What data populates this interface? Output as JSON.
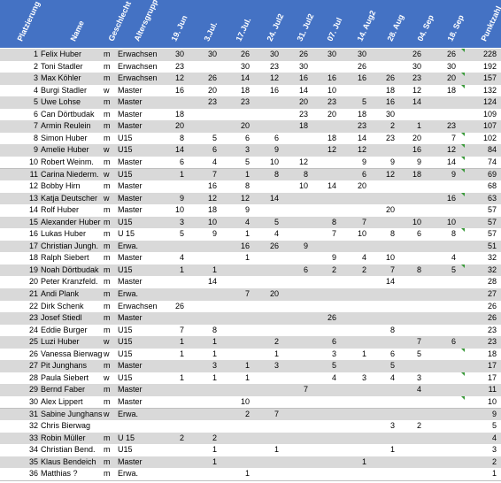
{
  "headers": [
    "Platzierung",
    "Name",
    "Geschlecht",
    "Altersgruppe",
    "19. Jun",
    "3.Jul.",
    "17.Jul.",
    "24. Jul2",
    "31. Jul2",
    "07. Jul",
    "14. Aug2",
    "28. Aug",
    "04. Sep",
    "18. Sep",
    "Punktzahl"
  ],
  "colors": {
    "header": "#4472c4",
    "band": "#d9d9d9",
    "flag": "#3a9a3a"
  },
  "rows": [
    {
      "rank": "1",
      "name": "Felix Huber",
      "sex": "m",
      "group": "Erwachsen",
      "v": [
        "30",
        "30",
        "26",
        "30",
        "26",
        "30",
        "30",
        "",
        "26",
        "26"
      ],
      "total": "228",
      "flag": true
    },
    {
      "rank": "2",
      "name": "Toni Stadler",
      "sex": "m",
      "group": "Erwachsen",
      "v": [
        "23",
        "",
        "30",
        "23",
        "30",
        "",
        "26",
        "",
        "30",
        "30"
      ],
      "total": "192"
    },
    {
      "rank": "3",
      "name": "Max Köhler",
      "sex": "m",
      "group": "Erwachsen",
      "v": [
        "12",
        "26",
        "14",
        "12",
        "16",
        "16",
        "16",
        "26",
        "23",
        "20"
      ],
      "total": "157",
      "flag": true
    },
    {
      "rank": "4",
      "name": "Burgi Stadler",
      "sex": "w",
      "group": "Master",
      "v": [
        "16",
        "20",
        "18",
        "16",
        "14",
        "10",
        "",
        "18",
        "12",
        "18"
      ],
      "total": "132",
      "flag": true
    },
    {
      "rank": "5",
      "name": "Uwe Lohse",
      "sex": "m",
      "group": "Master",
      "v": [
        "",
        "23",
        "23",
        "",
        "20",
        "23",
        "5",
        "16",
        "14",
        ""
      ],
      "total": "124"
    },
    {
      "rank": "6",
      "name": "Can Dörtbudak",
      "sex": "m",
      "group": "Master",
      "v": [
        "18",
        "",
        "",
        "",
        "23",
        "20",
        "18",
        "30",
        "",
        ""
      ],
      "total": "109"
    },
    {
      "rank": "7",
      "name": "Armin Reulein",
      "sex": "m",
      "group": "Master",
      "v": [
        "20",
        "",
        "20",
        "",
        "18",
        "",
        "23",
        "2",
        "1",
        "23"
      ],
      "total": "107"
    },
    {
      "rank": "8",
      "name": "Simon Huber",
      "sex": "m",
      "group": "U15",
      "v": [
        "8",
        "5",
        "6",
        "6",
        "",
        "18",
        "14",
        "23",
        "20",
        "7"
      ],
      "total": "102",
      "flag": true
    },
    {
      "rank": "9",
      "name": "Amelie Huber",
      "sex": "w",
      "group": "U15",
      "v": [
        "14",
        "6",
        "3",
        "9",
        "",
        "12",
        "12",
        "",
        "16",
        "12"
      ],
      "total": "84",
      "flag": true
    },
    {
      "rank": "10",
      "name": "Robert Weinm.",
      "sex": "m",
      "group": "Master",
      "v": [
        "6",
        "4",
        "5",
        "10",
        "12",
        "",
        "9",
        "9",
        "9",
        "14"
      ],
      "total": "74",
      "flag": true
    },
    {
      "rank": "11",
      "name": "Carina Niederm.",
      "sex": "w",
      "group": "U15",
      "v": [
        "1",
        "7",
        "1",
        "8",
        "8",
        "",
        "6",
        "12",
        "18",
        "9"
      ],
      "total": "69",
      "flag": true
    },
    {
      "rank": "12",
      "name": "Bobby Hirn",
      "sex": "m",
      "group": "Master",
      "v": [
        "",
        "16",
        "8",
        "",
        "10",
        "14",
        "20",
        "",
        "",
        ""
      ],
      "total": "68"
    },
    {
      "rank": "13",
      "name": "Katja Deutscher",
      "sex": "w",
      "group": "Master",
      "v": [
        "9",
        "12",
        "12",
        "14",
        "",
        "",
        "",
        "",
        "",
        "16"
      ],
      "total": "63",
      "flag": true
    },
    {
      "rank": "14",
      "name": "Rolf Huber",
      "sex": "m",
      "group": "Master",
      "v": [
        "10",
        "18",
        "9",
        "",
        "",
        "",
        "",
        "20",
        "",
        ""
      ],
      "total": "57"
    },
    {
      "rank": "15",
      "name": "Alexander Huber",
      "sex": "m",
      "group": "U15",
      "v": [
        "3",
        "10",
        "4",
        "5",
        "",
        "8",
        "7",
        "",
        "10",
        "10"
      ],
      "total": "57"
    },
    {
      "rank": "16",
      "name": "Lukas Huber",
      "sex": "m",
      "group": "U 15",
      "v": [
        "5",
        "9",
        "1",
        "4",
        "",
        "7",
        "10",
        "8",
        "6",
        "8"
      ],
      "total": "57",
      "flag": true
    },
    {
      "rank": "17",
      "name": "Christian Jungh.",
      "sex": "m",
      "group": "Erwa.",
      "v": [
        "",
        "",
        "16",
        "26",
        "9",
        "",
        "",
        "",
        "",
        ""
      ],
      "total": "51"
    },
    {
      "rank": "18",
      "name": "Ralph Siebert",
      "sex": "m",
      "group": "Master",
      "v": [
        "4",
        "",
        "1",
        "",
        "",
        "9",
        "4",
        "10",
        "",
        "4"
      ],
      "total": "32"
    },
    {
      "rank": "19",
      "name": "Noah Dörtbudak",
      "sex": "m",
      "group": "U15",
      "v": [
        "1",
        "1",
        "",
        "",
        "6",
        "2",
        "2",
        "7",
        "8",
        "5"
      ],
      "total": "32",
      "flag": true
    },
    {
      "rank": "20",
      "name": "Peter Kranzfeld.",
      "sex": "m",
      "group": "Master",
      "v": [
        "",
        "14",
        "",
        "",
        "",
        "",
        "",
        "14",
        "",
        ""
      ],
      "total": "28"
    },
    {
      "rank": "21",
      "name": "Andi Plank",
      "sex": "m",
      "group": "Erwa.",
      "v": [
        "",
        "",
        "7",
        "20",
        "",
        "",
        "",
        "",
        "",
        ""
      ],
      "total": "27"
    },
    {
      "rank": "22",
      "name": "Dirk Schenk",
      "sex": "m",
      "group": "Erwachsen",
      "v": [
        "26",
        "",
        "",
        "",
        "",
        "",
        "",
        "",
        "",
        ""
      ],
      "total": "26"
    },
    {
      "rank": "23",
      "name": "Josef Stiedl",
      "sex": "m",
      "group": "Master",
      "v": [
        "",
        "",
        "",
        "",
        "",
        "26",
        "",
        "",
        "",
        ""
      ],
      "total": "26"
    },
    {
      "rank": "24",
      "name": "Eddie Burger",
      "sex": "m",
      "group": "U15",
      "v": [
        "7",
        "8",
        "",
        "",
        "",
        "",
        "",
        "8",
        "",
        ""
      ],
      "total": "23"
    },
    {
      "rank": "25",
      "name": "Luzi Huber",
      "sex": "w",
      "group": "U15",
      "v": [
        "1",
        "1",
        "",
        "2",
        "",
        "6",
        "",
        "",
        "7",
        "6"
      ],
      "total": "23"
    },
    {
      "rank": "26",
      "name": "Vanessa Bierwag",
      "sex": "w",
      "group": "U15",
      "v": [
        "1",
        "1",
        "",
        "1",
        "",
        "3",
        "1",
        "6",
        "5",
        ""
      ],
      "total": "18",
      "flag": true
    },
    {
      "rank": "27",
      "name": "Pit Junghans",
      "sex": "m",
      "group": "Master",
      "v": [
        "",
        "3",
        "1",
        "3",
        "",
        "5",
        "",
        "5",
        "",
        ""
      ],
      "total": "17"
    },
    {
      "rank": "28",
      "name": "Paula Siebert",
      "sex": "w",
      "group": "U15",
      "v": [
        "1",
        "1",
        "1",
        "",
        "",
        "4",
        "3",
        "4",
        "3",
        ""
      ],
      "total": "17",
      "flag": true
    },
    {
      "rank": "29",
      "name": "Bernd Faber",
      "sex": "m",
      "group": "Master",
      "v": [
        "",
        "",
        "",
        "",
        "7",
        "",
        "",
        "",
        "4",
        ""
      ],
      "total": "11"
    },
    {
      "rank": "30",
      "name": "Alex Lippert",
      "sex": "m",
      "group": "Master",
      "v": [
        "",
        "",
        "10",
        "",
        "",
        "",
        "",
        "",
        "",
        ""
      ],
      "total": "10",
      "flag": true
    },
    {
      "rank": "31",
      "name": "Sabine Junghans",
      "sex": "w",
      "group": "Erwa.",
      "v": [
        "",
        "",
        "2",
        "7",
        "",
        "",
        "",
        "",
        "",
        ""
      ],
      "total": "9"
    },
    {
      "rank": "32",
      "name": "Chris Bierwag",
      "sex": "",
      "group": "",
      "v": [
        "",
        "",
        "",
        "",
        "",
        "",
        "",
        "3",
        "2",
        ""
      ],
      "total": "5"
    },
    {
      "rank": "33",
      "name": "Robin Müller",
      "sex": "m",
      "group": "U 15",
      "v": [
        "2",
        "2",
        "",
        "",
        "",
        "",
        "",
        "",
        "",
        ""
      ],
      "total": "4"
    },
    {
      "rank": "34",
      "name": "Christian Bend.",
      "sex": "m",
      "group": "U15",
      "v": [
        "",
        "1",
        "",
        "1",
        "",
        "",
        "",
        "1",
        "",
        ""
      ],
      "total": "3"
    },
    {
      "rank": "35",
      "name": "Klaus Bendeich",
      "sex": "m",
      "group": "Master",
      "v": [
        "",
        "1",
        "",
        "",
        "",
        "",
        "1",
        "",
        "",
        ""
      ],
      "total": "2"
    },
    {
      "rank": "36",
      "name": "Matthias ?",
      "sex": "m",
      "group": "Erwa.",
      "v": [
        "",
        "",
        "1",
        "",
        "",
        "",
        "",
        "",
        "",
        ""
      ],
      "total": "1"
    }
  ]
}
